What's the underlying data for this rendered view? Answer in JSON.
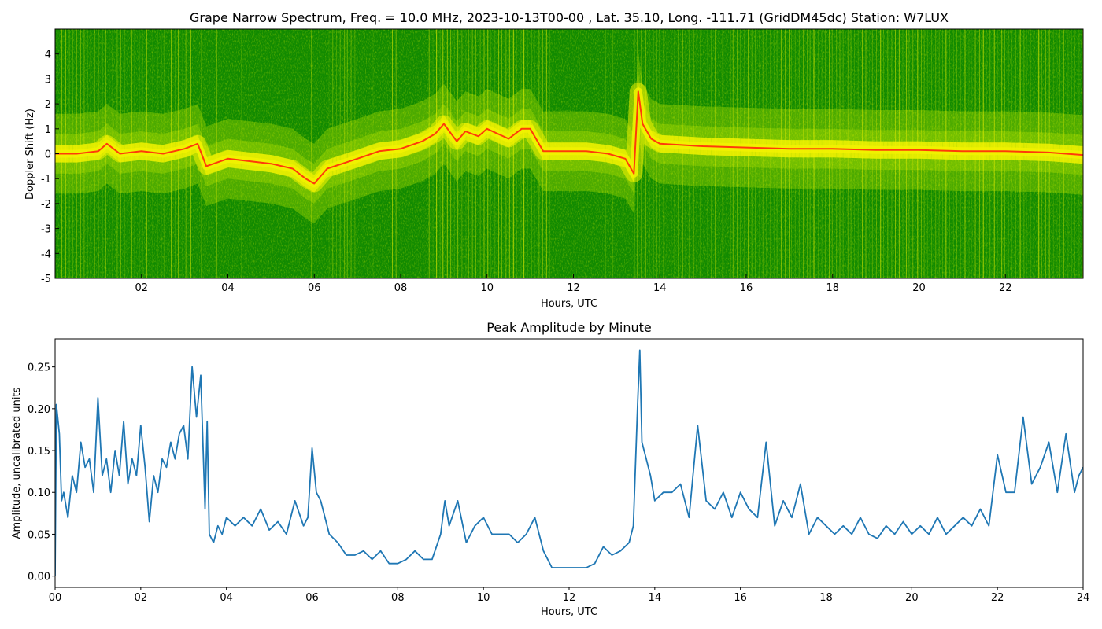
{
  "colors": {
    "spectrum_background": "#118a00",
    "spectrum_light": "#7cc400",
    "spectrum_yellow": "#f2f200",
    "spectrum_peak": "#ff3a0a",
    "line": "#1f77b4",
    "axis": "#000000"
  },
  "chart_data": [
    {
      "type": "heatmap",
      "title": "Grape Narrow Spectrum, Freq. = 10.0 MHz, 2023-10-13T00-00 , Lat.  35.10, Long. -111.71 (GridDM45dc) Station: W7LUX",
      "xlabel": "Hours, UTC",
      "ylabel": "Doppler Shift (Hz)",
      "xlim": [
        0,
        23.8
      ],
      "ylim": [
        -5,
        5
      ],
      "xticks": [
        2,
        4,
        6,
        8,
        10,
        12,
        14,
        16,
        18,
        20,
        22
      ],
      "xtick_labels": [
        "02",
        "04",
        "06",
        "08",
        "10",
        "12",
        "14",
        "16",
        "18",
        "20",
        "22"
      ],
      "yticks": [
        -5,
        -4,
        -3,
        -2,
        -1,
        0,
        1,
        2,
        3,
        4
      ],
      "ytick_labels": [
        "-5",
        "-4",
        "-3",
        "-2",
        "-1",
        "0",
        "1",
        "2",
        "3",
        "4"
      ],
      "colormap": [
        "#118a00",
        "#7cc400",
        "#f2f200",
        "#ff3a0a"
      ],
      "doppler_trace": {
        "x": [
          0,
          0.5,
          1.0,
          1.2,
          1.5,
          2.0,
          2.5,
          3.0,
          3.3,
          3.5,
          4.0,
          4.5,
          5.0,
          5.5,
          5.8,
          6.0,
          6.3,
          7.0,
          7.5,
          8.0,
          8.5,
          8.8,
          9.0,
          9.3,
          9.5,
          9.8,
          10.0,
          10.5,
          10.8,
          11.0,
          11.3,
          11.8,
          12.3,
          12.8,
          13.2,
          13.4,
          13.5,
          13.6,
          13.8,
          14.0,
          14.5,
          15.0,
          16.0,
          17.0,
          18.0,
          19.0,
          20.0,
          21.0,
          22.0,
          23.0,
          23.8
        ],
        "y": [
          0.0,
          0.0,
          0.1,
          0.4,
          0.0,
          0.1,
          0.0,
          0.2,
          0.4,
          -0.5,
          -0.2,
          -0.3,
          -0.4,
          -0.6,
          -1.0,
          -1.2,
          -0.6,
          -0.2,
          0.1,
          0.2,
          0.5,
          0.8,
          1.2,
          0.5,
          0.9,
          0.7,
          1.0,
          0.6,
          1.0,
          1.0,
          0.1,
          0.1,
          0.1,
          0.0,
          -0.2,
          -0.8,
          2.5,
          1.2,
          0.6,
          0.4,
          0.35,
          0.3,
          0.25,
          0.2,
          0.2,
          0.15,
          0.15,
          0.1,
          0.1,
          0.05,
          -0.05
        ]
      }
    },
    {
      "type": "line",
      "title": "Peak Amplitude by Minute",
      "xlabel": "Hours, UTC",
      "ylabel": "Amplitude, uncalibrated units",
      "xlim": [
        0,
        24
      ],
      "ylim": [
        -0.0135,
        0.2835
      ],
      "xticks": [
        0,
        2,
        4,
        6,
        8,
        10,
        12,
        14,
        16,
        18,
        20,
        22,
        24
      ],
      "xtick_labels": [
        "00",
        "02",
        "04",
        "06",
        "08",
        "10",
        "12",
        "14",
        "16",
        "18",
        "20",
        "22",
        "24"
      ],
      "yticks": [
        0.0,
        0.05,
        0.1,
        0.15,
        0.2,
        0.25
      ],
      "ytick_labels": [
        "0.00",
        "0.05",
        "0.10",
        "0.15",
        "0.20",
        "0.25"
      ],
      "series": [
        {
          "x": [
            0.0,
            0.03,
            0.1,
            0.15,
            0.2,
            0.3,
            0.4,
            0.5,
            0.6,
            0.7,
            0.8,
            0.9,
            1.0,
            1.1,
            1.2,
            1.3,
            1.4,
            1.5,
            1.6,
            1.7,
            1.8,
            1.9,
            2.0,
            2.1,
            2.2,
            2.3,
            2.4,
            2.5,
            2.6,
            2.7,
            2.8,
            2.9,
            3.0,
            3.1,
            3.2,
            3.3,
            3.4,
            3.5,
            3.55,
            3.6,
            3.7,
            3.8,
            3.9,
            4.0,
            4.2,
            4.4,
            4.6,
            4.8,
            5.0,
            5.2,
            5.4,
            5.6,
            5.8,
            5.9,
            6.0,
            6.1,
            6.2,
            6.4,
            6.6,
            6.8,
            7.0,
            7.2,
            7.4,
            7.6,
            7.8,
            8.0,
            8.2,
            8.4,
            8.6,
            8.8,
            9.0,
            9.1,
            9.2,
            9.4,
            9.6,
            9.8,
            10.0,
            10.2,
            10.4,
            10.6,
            10.8,
            11.0,
            11.2,
            11.4,
            11.6,
            11.8,
            12.0,
            12.2,
            12.4,
            12.6,
            12.8,
            13.0,
            13.2,
            13.4,
            13.5,
            13.6,
            13.65,
            13.7,
            13.8,
            13.9,
            14.0,
            14.2,
            14.4,
            14.6,
            14.8,
            15.0,
            15.2,
            15.4,
            15.6,
            15.8,
            16.0,
            16.2,
            16.4,
            16.6,
            16.8,
            17.0,
            17.2,
            17.4,
            17.6,
            17.8,
            18.0,
            18.2,
            18.4,
            18.6,
            18.8,
            19.0,
            19.2,
            19.4,
            19.6,
            19.8,
            20.0,
            20.2,
            20.4,
            20.6,
            20.8,
            21.0,
            21.2,
            21.4,
            21.6,
            21.8,
            22.0,
            22.2,
            22.4,
            22.6,
            22.8,
            23.0,
            23.2,
            23.4,
            23.6,
            23.8,
            23.9,
            24.0
          ],
          "values": [
            0.0,
            0.205,
            0.17,
            0.09,
            0.1,
            0.07,
            0.12,
            0.1,
            0.16,
            0.13,
            0.14,
            0.1,
            0.213,
            0.12,
            0.14,
            0.1,
            0.15,
            0.12,
            0.185,
            0.11,
            0.14,
            0.12,
            0.18,
            0.13,
            0.065,
            0.12,
            0.1,
            0.14,
            0.13,
            0.16,
            0.14,
            0.17,
            0.18,
            0.14,
            0.25,
            0.19,
            0.24,
            0.08,
            0.185,
            0.05,
            0.04,
            0.06,
            0.05,
            0.07,
            0.06,
            0.07,
            0.06,
            0.08,
            0.055,
            0.065,
            0.05,
            0.09,
            0.06,
            0.07,
            0.153,
            0.1,
            0.09,
            0.05,
            0.04,
            0.025,
            0.025,
            0.03,
            0.02,
            0.03,
            0.015,
            0.015,
            0.02,
            0.03,
            0.02,
            0.02,
            0.05,
            0.09,
            0.06,
            0.09,
            0.04,
            0.06,
            0.07,
            0.05,
            0.05,
            0.05,
            0.04,
            0.05,
            0.07,
            0.03,
            0.01,
            0.01,
            0.01,
            0.01,
            0.01,
            0.015,
            0.035,
            0.025,
            0.03,
            0.04,
            0.06,
            0.207,
            0.27,
            0.16,
            0.14,
            0.12,
            0.09,
            0.1,
            0.1,
            0.11,
            0.07,
            0.18,
            0.09,
            0.08,
            0.1,
            0.07,
            0.1,
            0.08,
            0.07,
            0.16,
            0.06,
            0.09,
            0.07,
            0.11,
            0.05,
            0.07,
            0.06,
            0.05,
            0.06,
            0.05,
            0.07,
            0.05,
            0.045,
            0.06,
            0.05,
            0.065,
            0.05,
            0.06,
            0.05,
            0.07,
            0.05,
            0.06,
            0.07,
            0.06,
            0.08,
            0.06,
            0.145,
            0.1,
            0.1,
            0.19,
            0.11,
            0.13,
            0.16,
            0.1,
            0.17,
            0.1,
            0.12,
            0.13
          ]
        }
      ]
    }
  ]
}
